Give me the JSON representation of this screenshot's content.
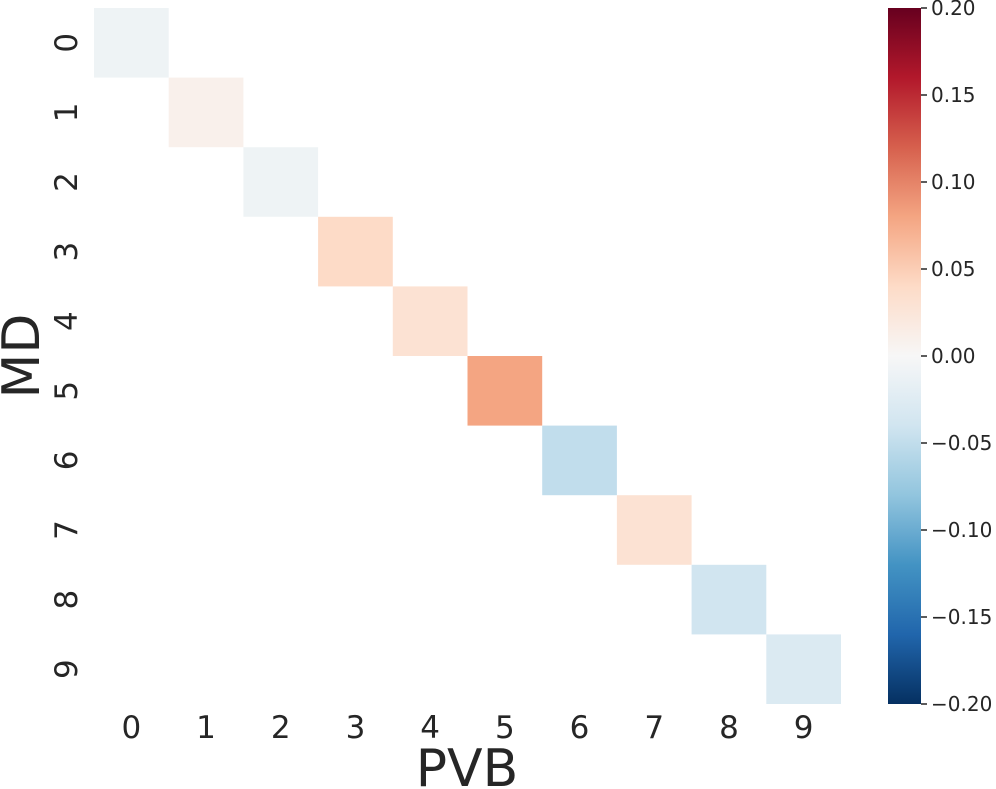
{
  "chart_data": {
    "type": "heatmap",
    "title": "",
    "xlabel": "PVB",
    "ylabel": "MD",
    "x_categories": [
      "0",
      "1",
      "2",
      "3",
      "4",
      "5",
      "6",
      "7",
      "8",
      "9"
    ],
    "y_categories": [
      "0",
      "1",
      "2",
      "3",
      "4",
      "5",
      "6",
      "7",
      "8",
      "9"
    ],
    "cells": [
      {
        "row": 0,
        "col": 0,
        "value": -0.01
      },
      {
        "row": 1,
        "col": 1,
        "value": 0.01
      },
      {
        "row": 2,
        "col": 2,
        "value": -0.01
      },
      {
        "row": 3,
        "col": 3,
        "value": 0.04
      },
      {
        "row": 4,
        "col": 4,
        "value": 0.03
      },
      {
        "row": 5,
        "col": 5,
        "value": 0.08
      },
      {
        "row": 6,
        "col": 6,
        "value": -0.05
      },
      {
        "row": 7,
        "col": 7,
        "value": 0.03
      },
      {
        "row": 8,
        "col": 8,
        "value": -0.04
      },
      {
        "row": 9,
        "col": 9,
        "value": -0.03
      }
    ],
    "off_diagonal": "blank",
    "colormap": "RdBu_r",
    "vmin": -0.2,
    "vmax": 0.2,
    "colorbar": {
      "ticks": [
        0.2,
        0.15,
        0.1,
        0.05,
        0.0,
        -0.05,
        -0.1,
        -0.15,
        -0.2
      ],
      "tick_labels": [
        "0.20",
        "0.15",
        "0.10",
        "0.05",
        "0.00",
        "−0.05",
        "−0.10",
        "−0.15",
        "−0.20"
      ]
    },
    "grid": false
  }
}
